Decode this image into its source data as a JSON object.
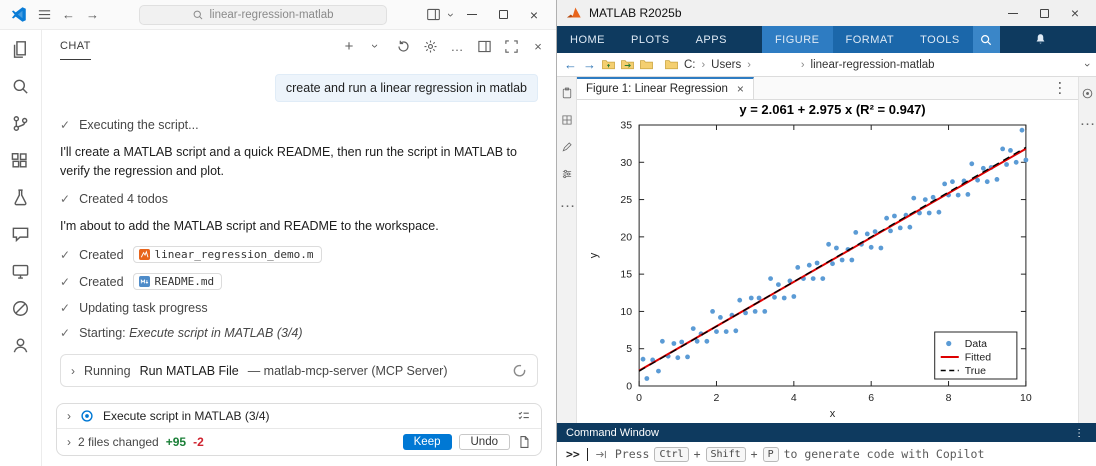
{
  "icons": {
    "check": "✓",
    "close": "×",
    "chevron": "›",
    "more": "…",
    "plus": "+",
    "back": "←",
    "forward": "→"
  },
  "vscode": {
    "titlebar": {
      "search_text": "linear-regression-matlab"
    },
    "chat": {
      "tab_label": "CHAT",
      "user_message": "create and run a linear regression in matlab",
      "steps": [
        {
          "text": "Executing the script..."
        },
        {
          "text": "Created 4 todos"
        },
        {
          "text": "Updating task progress"
        },
        {
          "prefix": "Starting: ",
          "italic": "Execute script in MATLAB (3/4)"
        }
      ],
      "paragraphs": [
        "I'll create a MATLAB script and a quick README, then run the script in MATLAB to verify the regression and plot.",
        "I'm about to add the MATLAB script and README to the workspace."
      ],
      "files": [
        {
          "action": "Created",
          "name": "linear_regression_demo.m"
        },
        {
          "action": "Created",
          "name": "README.md"
        }
      ],
      "tool_call": {
        "prefix": "Running",
        "name": "Run MATLAB File",
        "suffix": "— matlab-mcp-server (MCP Server)"
      },
      "todo": {
        "label": "Execute script in MATLAB (3/4)"
      },
      "changes": {
        "summary": "2 files changed",
        "added": "+95",
        "removed": "-2",
        "keep_label": "Keep",
        "undo_label": "Undo"
      }
    }
  },
  "matlab": {
    "titlebar": {
      "title": "MATLAB R2025b"
    },
    "ribbon": {
      "tabs": [
        "HOME",
        "PLOTS",
        "APPS"
      ],
      "contextual_tabs": [
        "FIGURE",
        "FORMAT",
        "TOOLS"
      ]
    },
    "pathbar": {
      "segments": [
        "C:",
        "Users",
        "linear-regression-matlab"
      ]
    },
    "figure_tab": "Figure 1: Linear Regression",
    "command_window": {
      "header": "Command Window",
      "prompt": ">>",
      "hint": {
        "pre": "Press",
        "keys": [
          "Ctrl",
          "Shift",
          "P"
        ],
        "joiner": "+",
        "post": "to generate code with Copilot"
      }
    }
  },
  "chart_data": {
    "type": "scatter",
    "title": "y = 2.061 + 2.975 x    (R² = 0.947)",
    "xlabel": "x",
    "ylabel": "y",
    "xlim": [
      0,
      10
    ],
    "ylim": [
      0,
      35
    ],
    "xticks": [
      0,
      2,
      4,
      6,
      8,
      10
    ],
    "yticks": [
      0,
      5,
      10,
      15,
      20,
      25,
      30,
      35
    ],
    "legend": [
      "Data",
      "Fitted",
      "True"
    ],
    "legend_position": "bottom-right",
    "series": [
      {
        "name": "Data",
        "type": "scatter",
        "color": "#5b9bd5",
        "x": [
          0.1,
          0.2,
          0.35,
          0.5,
          0.6,
          0.75,
          0.9,
          1.0,
          1.1,
          1.25,
          1.4,
          1.5,
          1.6,
          1.75,
          1.9,
          2.0,
          2.1,
          2.25,
          2.4,
          2.5,
          2.6,
          2.75,
          2.9,
          3.0,
          3.1,
          3.25,
          3.4,
          3.5,
          3.6,
          3.75,
          3.9,
          4.0,
          4.1,
          4.25,
          4.4,
          4.5,
          4.6,
          4.75,
          4.9,
          5.0,
          5.1,
          5.25,
          5.4,
          5.5,
          5.6,
          5.75,
          5.9,
          6.0,
          6.1,
          6.25,
          6.4,
          6.5,
          6.6,
          6.75,
          6.9,
          7.0,
          7.1,
          7.25,
          7.4,
          7.5,
          7.6,
          7.75,
          7.9,
          8.0,
          8.1,
          8.25,
          8.4,
          8.5,
          8.6,
          8.75,
          8.9,
          9.0,
          9.1,
          9.25,
          9.4,
          9.5,
          9.6,
          9.75,
          9.9,
          10.0
        ],
        "y": [
          3.6,
          1.0,
          3.5,
          2.0,
          6.0,
          4.0,
          5.7,
          3.8,
          5.9,
          3.9,
          7.7,
          6.0,
          7.0,
          6.0,
          10.0,
          7.3,
          9.2,
          7.3,
          9.5,
          7.4,
          11.5,
          9.8,
          11.8,
          10.0,
          11.8,
          10.0,
          14.4,
          11.9,
          13.6,
          11.8,
          14.1,
          12.0,
          15.9,
          14.4,
          16.2,
          14.4,
          16.5,
          14.4,
          19.0,
          16.4,
          18.5,
          16.9,
          18.3,
          16.9,
          20.6,
          19.0,
          20.4,
          18.6,
          20.7,
          18.5,
          22.5,
          20.8,
          22.8,
          21.2,
          22.9,
          21.3,
          25.2,
          23.2,
          25.0,
          23.2,
          25.3,
          23.3,
          27.1,
          25.6,
          27.4,
          25.6,
          27.5,
          25.7,
          29.8,
          27.6,
          29.2,
          27.4,
          29.3,
          27.7,
          31.8,
          29.7,
          31.6,
          30.0,
          34.3,
          30.3
        ]
      },
      {
        "name": "Fitted",
        "type": "line",
        "color": "#dd0000",
        "points": [
          [
            0,
            2.061
          ],
          [
            10,
            31.811
          ]
        ]
      },
      {
        "name": "True",
        "type": "line",
        "dashed": true,
        "color": "#000000",
        "points": [
          [
            0,
            2.0
          ],
          [
            10,
            32.0
          ]
        ]
      }
    ]
  }
}
